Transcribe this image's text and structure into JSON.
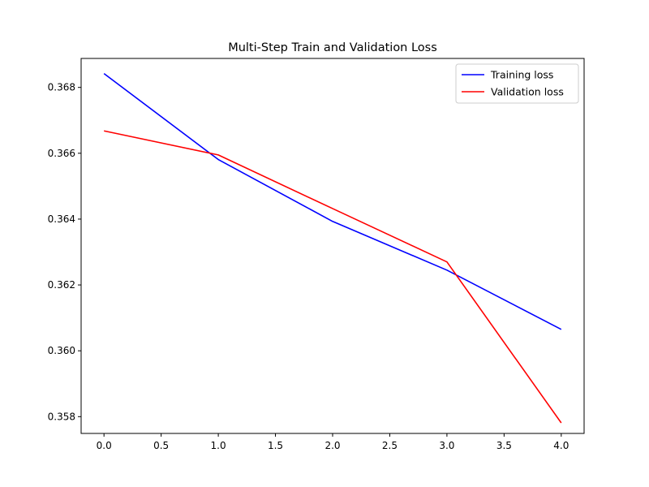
{
  "chart_data": {
    "type": "line",
    "title": "Multi-Step Train and Validation Loss",
    "xlabel": "",
    "ylabel": "",
    "xlim": [
      -0.2,
      4.2
    ],
    "ylim": [
      0.35749,
      0.36888
    ],
    "x_ticks": [
      0.0,
      0.5,
      1.0,
      1.5,
      2.0,
      2.5,
      3.0,
      3.5,
      4.0
    ],
    "x_tick_labels": [
      "0.0",
      "0.5",
      "1.0",
      "1.5",
      "2.0",
      "2.5",
      "3.0",
      "3.5",
      "4.0"
    ],
    "y_ticks": [
      0.358,
      0.36,
      0.362,
      0.364,
      0.366,
      0.368
    ],
    "y_tick_labels": [
      "0.358",
      "0.360",
      "0.362",
      "0.364",
      "0.366",
      "0.368"
    ],
    "grid": false,
    "legend_position": "top-right",
    "x": [
      0,
      1,
      2,
      3,
      4
    ],
    "series": [
      {
        "name": "Training loss",
        "color": "#0000ff",
        "values": [
          0.36842,
          0.36581,
          0.36393,
          0.36245,
          0.36065
        ]
      },
      {
        "name": "Validation loss",
        "color": "#ff0000",
        "values": [
          0.36668,
          0.36595,
          0.36432,
          0.3627,
          0.35781
        ]
      }
    ]
  }
}
